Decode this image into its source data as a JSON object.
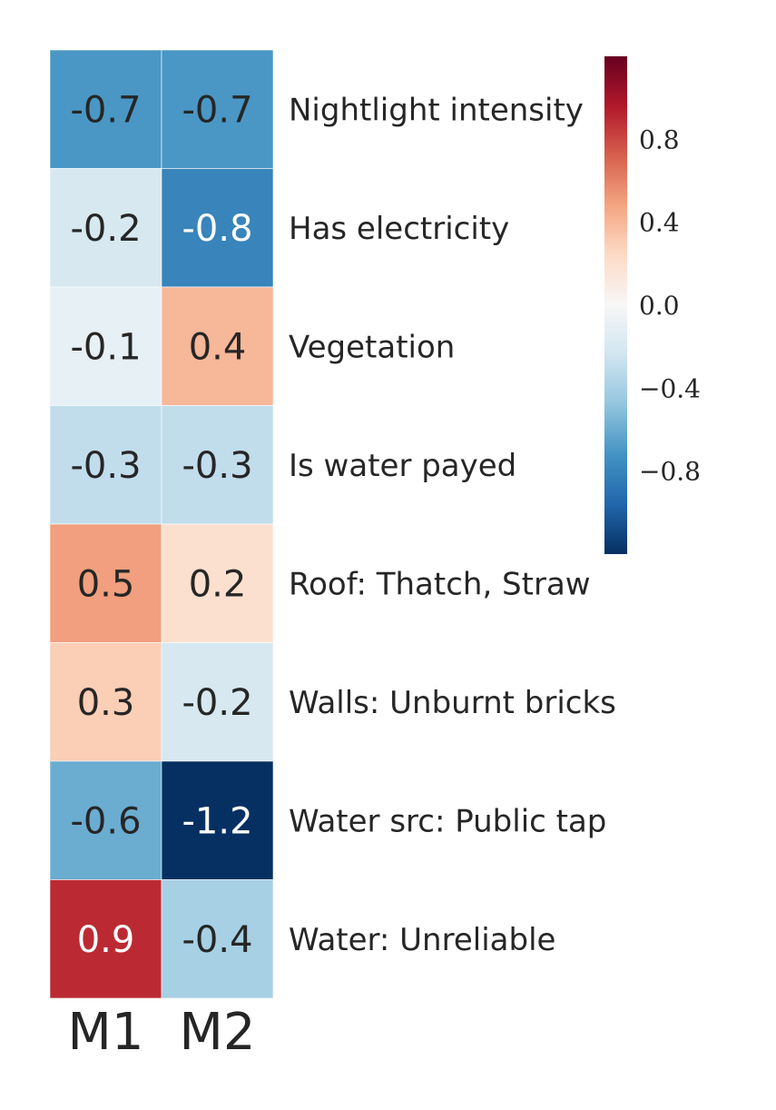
{
  "chart_data": {
    "type": "heatmap",
    "columns": [
      "M1",
      "M2"
    ],
    "rows": [
      "Nightlight intensity",
      "Has electricity",
      "Vegetation",
      "Is water payed",
      "Roof: Thatch, Straw",
      "Walls: Unburnt bricks",
      "Water src: Public tap",
      "Water: Unreliable"
    ],
    "values": [
      [
        -0.7,
        -0.7
      ],
      [
        -0.2,
        -0.8
      ],
      [
        -0.1,
        0.4
      ],
      [
        -0.3,
        -0.3
      ],
      [
        0.5,
        0.2
      ],
      [
        0.3,
        -0.2
      ],
      [
        -0.6,
        -1.2
      ],
      [
        0.9,
        -0.4
      ]
    ],
    "cell_labels": [
      [
        "-0.7",
        "-0.7"
      ],
      [
        "-0.2",
        "-0.8"
      ],
      [
        "-0.1",
        "0.4"
      ],
      [
        "-0.3",
        "-0.3"
      ],
      [
        "0.5",
        "0.2"
      ],
      [
        "0.3",
        "-0.2"
      ],
      [
        "-0.6",
        "-1.2"
      ],
      [
        "0.9",
        "-0.4"
      ]
    ],
    "colormap": "RdBu_r",
    "colorbar": {
      "range": [
        -1.2,
        1.2
      ],
      "ticks": [
        0.8,
        0.4,
        0.0,
        -0.4,
        -0.8
      ],
      "tick_labels": [
        "0.8",
        "0.4",
        "0.0",
        "−0.4",
        "−0.8"
      ]
    },
    "colors": {
      "stops": [
        "#053061",
        "#2166ac",
        "#4393c3",
        "#92c5de",
        "#d1e5f0",
        "#f7f7f7",
        "#fddbc7",
        "#f4a582",
        "#d6604d",
        "#b2182b",
        "#67001f"
      ],
      "text_dark": "#262626",
      "text_light": "#ffffff"
    }
  }
}
